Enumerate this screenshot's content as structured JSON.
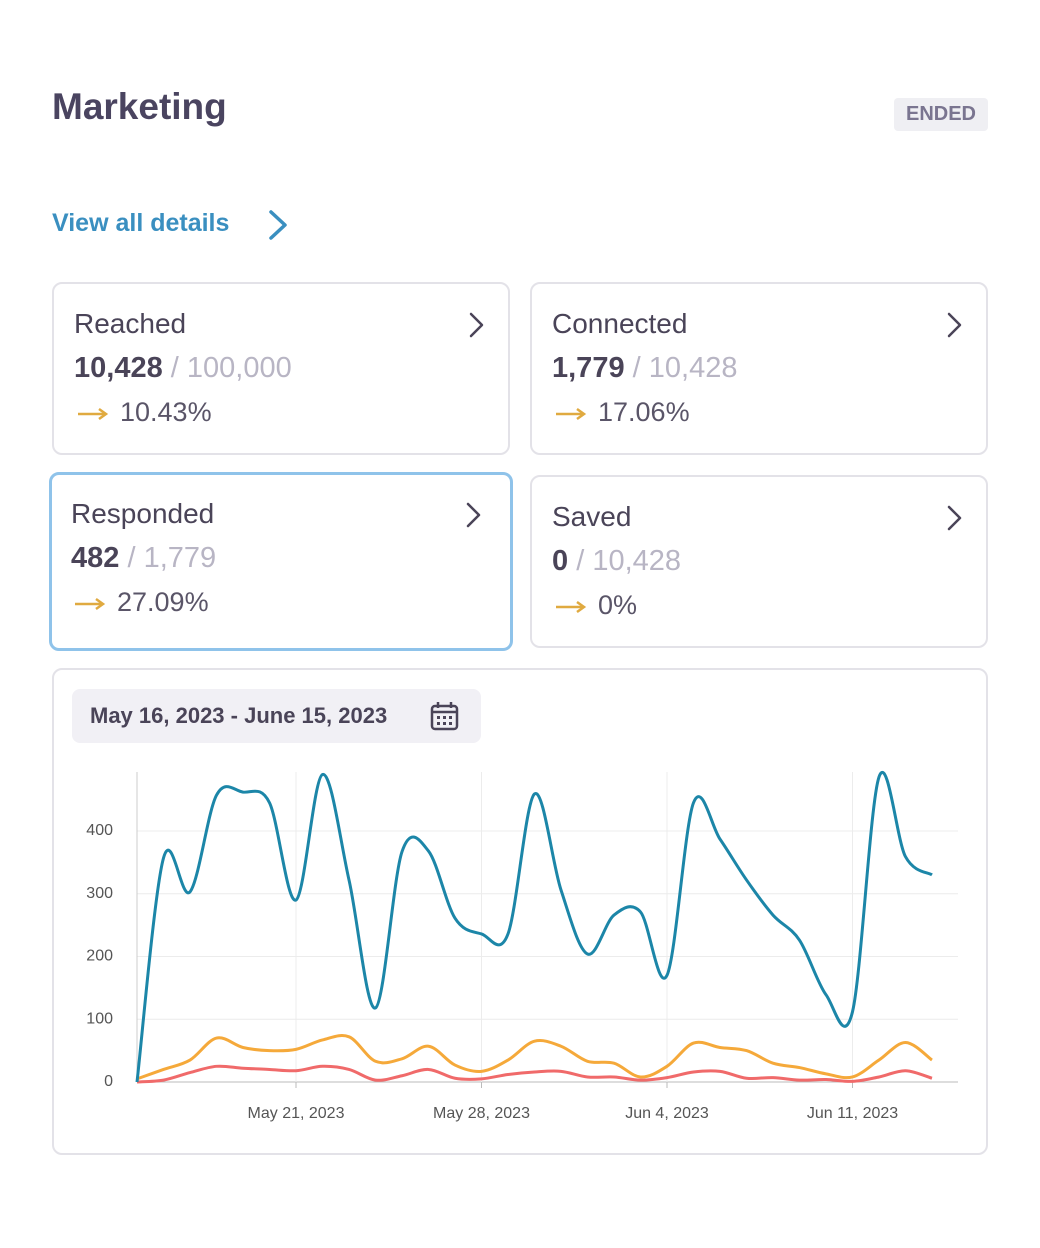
{
  "header": {
    "title": "Marketing",
    "status": "ENDED"
  },
  "link": "View all details",
  "cards": [
    {
      "title": "Reached",
      "value": "10,428",
      "total": "100,000",
      "percent": "10.43%"
    },
    {
      "title": "Connected",
      "value": "1,779",
      "total": "10,428",
      "percent": "17.06%"
    },
    {
      "title": "Responded",
      "value": "482",
      "total": "1,779",
      "percent": "27.09%"
    },
    {
      "title": "Saved",
      "value": "0",
      "total": "10,428",
      "percent": "0%"
    }
  ],
  "date_range": "May 16, 2023 - June 15, 2023",
  "chart_data": {
    "type": "line",
    "x": [
      "2023-05-15",
      "2023-05-16",
      "2023-05-17",
      "2023-05-18",
      "2023-05-19",
      "2023-05-20",
      "2023-05-21",
      "2023-05-22",
      "2023-05-23",
      "2023-05-24",
      "2023-05-25",
      "2023-05-26",
      "2023-05-27",
      "2023-05-28",
      "2023-05-29",
      "2023-05-30",
      "2023-05-31",
      "2023-06-01",
      "2023-06-02",
      "2023-06-03",
      "2023-06-04",
      "2023-06-05",
      "2023-06-06",
      "2023-06-07",
      "2023-06-08",
      "2023-06-09",
      "2023-06-10",
      "2023-06-11",
      "2023-06-12",
      "2023-06-13",
      "2023-06-14"
    ],
    "series": [
      {
        "color": "#1c86a8",
        "values": [
          0,
          357,
          303,
          457,
          462,
          445,
          290,
          490,
          322,
          118,
          367,
          368,
          261,
          236,
          236,
          459,
          306,
          204,
          266,
          271,
          170,
          445,
          387,
          322,
          266,
          226,
          139,
          112,
          486,
          359,
          330
        ]
      },
      {
        "color": "#f5a93a",
        "values": [
          5,
          20,
          35,
          70,
          55,
          50,
          52,
          67,
          72,
          33,
          37,
          57,
          27,
          17,
          35,
          65,
          57,
          33,
          30,
          8,
          25,
          62,
          55,
          50,
          30,
          23,
          13,
          8,
          35,
          63,
          35
        ]
      },
      {
        "color": "#f06a6a",
        "values": [
          0,
          3,
          15,
          25,
          22,
          20,
          18,
          25,
          20,
          3,
          10,
          20,
          6,
          5,
          12,
          16,
          17,
          8,
          8,
          3,
          7,
          16,
          17,
          6,
          7,
          3,
          4,
          1,
          8,
          18,
          6
        ]
      }
    ],
    "xlim": [
      "2023-05-15",
      "2023-06-14"
    ],
    "xticks": [
      {
        "value": "2023-05-21",
        "label": "May 21, 2023"
      },
      {
        "value": "2023-05-28",
        "label": "May 28, 2023"
      },
      {
        "value": "2023-06-04",
        "label": "Jun 4, 2023"
      },
      {
        "value": "2023-06-11",
        "label": "Jun 11, 2023"
      }
    ],
    "ylim": [
      0,
      494
    ],
    "yticks": [
      0,
      100,
      200,
      300,
      400
    ],
    "grid": true
  }
}
